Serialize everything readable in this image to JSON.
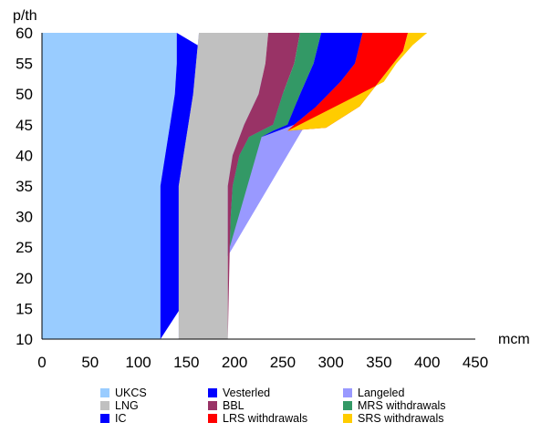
{
  "chart_data": {
    "type": "area",
    "xlabel": "mcm",
    "ylabel": "p/th",
    "xlim": [
      0,
      450
    ],
    "ylim": [
      10,
      60
    ],
    "xticks": [
      "0",
      "50",
      "100",
      "150",
      "200",
      "250",
      "300",
      "350",
      "400",
      "450"
    ],
    "yticks": [
      "10",
      "15",
      "20",
      "25",
      "30",
      "35",
      "40",
      "45",
      "50",
      "55",
      "60"
    ],
    "grid": false,
    "legend_position": "bottom",
    "series": [
      {
        "name": "UKCS",
        "color": "#99ccff",
        "points": [
          [
            123,
            10
          ],
          [
            123,
            35
          ],
          [
            128,
            40
          ],
          [
            133,
            45
          ],
          [
            138,
            50
          ],
          [
            140,
            55
          ],
          [
            140,
            60
          ]
        ]
      },
      {
        "name": "Vesterled",
        "color": "#0000ff",
        "points": [
          [
            330,
            60
          ],
          [
            335,
            55
          ],
          [
            310,
            50
          ],
          [
            290,
            46
          ]
        ]
      },
      {
        "name": "Langeled",
        "color": "#9999ff",
        "points": [
          [
            142,
            10
          ],
          [
            142,
            35
          ],
          [
            147,
            40
          ],
          [
            152,
            45
          ],
          [
            157,
            50
          ],
          [
            160,
            55
          ],
          [
            163,
            60
          ]
        ]
      },
      {
        "name": "LNG",
        "color": "#c0c0c0",
        "points": [
          [
            193,
            10
          ],
          [
            193,
            35
          ],
          [
            198,
            40
          ],
          [
            210,
            45
          ],
          [
            225,
            50
          ],
          [
            232,
            55
          ],
          [
            235,
            60
          ]
        ]
      },
      {
        "name": "BBL",
        "color": "#993366",
        "points": [
          [
            195,
            25
          ],
          [
            196,
            30
          ],
          [
            198,
            35
          ],
          [
            205,
            40
          ],
          [
            215,
            43
          ],
          [
            240,
            45
          ],
          [
            250,
            50
          ],
          [
            262,
            55
          ],
          [
            268,
            60
          ]
        ]
      },
      {
        "name": "MRS withdrawals",
        "color": "#339966",
        "points": [
          [
            228,
            43
          ],
          [
            240,
            44
          ],
          [
            255,
            45
          ],
          [
            268,
            50
          ],
          [
            282,
            55
          ],
          [
            290,
            60
          ]
        ]
      },
      {
        "name": "IC",
        "color": "#0000ff",
        "points": [
          [
            262,
            45
          ],
          [
            285,
            48
          ],
          [
            310,
            52
          ],
          [
            325,
            55
          ],
          [
            333,
            60
          ]
        ]
      },
      {
        "name": "LRS withdrawals",
        "color": "#ff0000",
        "points": [
          [
            255,
            44
          ],
          [
            295,
            44.5
          ],
          [
            330,
            48
          ],
          [
            350,
            52
          ],
          [
            375,
            57
          ],
          [
            380,
            60
          ]
        ]
      },
      {
        "name": "SRS withdrawals",
        "color": "#ffcc00",
        "points": [
          [
            355,
            52
          ],
          [
            368,
            55
          ],
          [
            385,
            58
          ],
          [
            400,
            60
          ]
        ]
      }
    ],
    "legend": [
      {
        "label": "UKCS",
        "color": "#99ccff"
      },
      {
        "label": "Vesterled",
        "color": "#0000ff"
      },
      {
        "label": "Langeled",
        "color": "#9999ff"
      },
      {
        "label": "LNG",
        "color": "#c0c0c0"
      },
      {
        "label": "BBL",
        "color": "#993366"
      },
      {
        "label": "MRS withdrawals",
        "color": "#339966"
      },
      {
        "label": "IC",
        "color": "#0000ff"
      },
      {
        "label": "LRS withdrawals",
        "color": "#ff0000"
      },
      {
        "label": "SRS withdrawals",
        "color": "#ffcc00"
      }
    ]
  }
}
